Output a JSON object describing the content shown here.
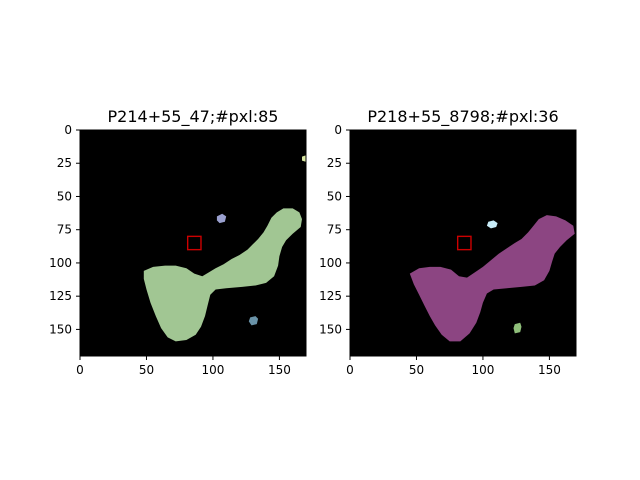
{
  "figure": {
    "background": "#ffffff"
  },
  "chart_data": [
    {
      "type": "image",
      "title": "P214+55_47;#pxl:85",
      "xlim": [
        0,
        170
      ],
      "ylim": [
        170,
        0
      ],
      "xticks": [
        0,
        50,
        100,
        150
      ],
      "yticks": [
        0,
        25,
        50,
        75,
        100,
        125,
        150
      ],
      "background": "#000000",
      "marker_box": {
        "x": [
          81,
          91
        ],
        "y": [
          80,
          90
        ],
        "color": "#cc0000"
      },
      "regions": [
        {
          "name": "main-blob",
          "color": "#a1c693",
          "points": [
            [
              48,
              106
            ],
            [
              55,
              103
            ],
            [
              64,
              102
            ],
            [
              72,
              102
            ],
            [
              80,
              104
            ],
            [
              86,
              108
            ],
            [
              92,
              110
            ],
            [
              97,
              107
            ],
            [
              102,
              104
            ],
            [
              108,
              101
            ],
            [
              114,
              97
            ],
            [
              120,
              94
            ],
            [
              126,
              90
            ],
            [
              130,
              86
            ],
            [
              134,
              82
            ],
            [
              138,
              77
            ],
            [
              141,
              72
            ],
            [
              144,
              66
            ],
            [
              148,
              62
            ],
            [
              153,
              59
            ],
            [
              160,
              59
            ],
            [
              165,
              62
            ],
            [
              167,
              67
            ],
            [
              166,
              73
            ],
            [
              160,
              78
            ],
            [
              155,
              83
            ],
            [
              152,
              88
            ],
            [
              150,
              95
            ],
            [
              149,
              102
            ],
            [
              146,
              110
            ],
            [
              140,
              115
            ],
            [
              132,
              117
            ],
            [
              122,
              118
            ],
            [
              110,
              119
            ],
            [
              102,
              120
            ],
            [
              98,
              124
            ],
            [
              96,
              132
            ],
            [
              94,
              140
            ],
            [
              91,
              148
            ],
            [
              87,
              154
            ],
            [
              80,
              158
            ],
            [
              72,
              159
            ],
            [
              66,
              156
            ],
            [
              61,
              149
            ],
            [
              57,
              140
            ],
            [
              53,
              130
            ],
            [
              50,
              120
            ],
            [
              48,
              112
            ]
          ]
        },
        {
          "name": "purple-speck",
          "color": "#9aa0cf",
          "points": [
            [
              103,
              65
            ],
            [
              107,
              63
            ],
            [
              110,
              65
            ],
            [
              109,
              69
            ],
            [
              105,
              70
            ],
            [
              103,
              68
            ]
          ]
        },
        {
          "name": "teal-speck",
          "color": "#6a93a8",
          "points": [
            [
              128,
              141
            ],
            [
              132,
              140
            ],
            [
              134,
              142
            ],
            [
              133,
              146
            ],
            [
              129,
              147
            ],
            [
              127,
              144
            ]
          ]
        },
        {
          "name": "yellow-speck",
          "color": "#d8e6a0",
          "points": [
            [
              167,
              20
            ],
            [
              170,
              19
            ],
            [
              170,
              24
            ],
            [
              167,
              23
            ]
          ]
        }
      ]
    },
    {
      "type": "image",
      "title": "P218+55_8798;#pxl:36",
      "xlim": [
        0,
        170
      ],
      "ylim": [
        170,
        0
      ],
      "xticks": [
        0,
        50,
        100,
        150
      ],
      "yticks": [
        0,
        25,
        50,
        75,
        100,
        125,
        150
      ],
      "background": "#000000",
      "marker_box": {
        "x": [
          81,
          91
        ],
        "y": [
          80,
          90
        ],
        "color": "#cc0000"
      },
      "regions": [
        {
          "name": "main-blob",
          "color": "#8c4582",
          "points": [
            [
              45,
              108
            ],
            [
              52,
              104
            ],
            [
              60,
              103
            ],
            [
              68,
              103
            ],
            [
              76,
              105
            ],
            [
              82,
              110
            ],
            [
              88,
              111
            ],
            [
              94,
              107
            ],
            [
              100,
              103
            ],
            [
              106,
              98
            ],
            [
              112,
              93
            ],
            [
              118,
              89
            ],
            [
              124,
              85
            ],
            [
              129,
              82
            ],
            [
              134,
              77
            ],
            [
              138,
              72
            ],
            [
              142,
              67
            ],
            [
              148,
              64
            ],
            [
              155,
              65
            ],
            [
              162,
              68
            ],
            [
              168,
              72
            ],
            [
              169,
              78
            ],
            [
              163,
              83
            ],
            [
              158,
              88
            ],
            [
              154,
              93
            ],
            [
              152,
              99
            ],
            [
              150,
              106
            ],
            [
              146,
              113
            ],
            [
              139,
              117
            ],
            [
              129,
              118
            ],
            [
              118,
              119
            ],
            [
              108,
              120
            ],
            [
              103,
              123
            ],
            [
              100,
              130
            ],
            [
              98,
              137
            ],
            [
              95,
              145
            ],
            [
              90,
              153
            ],
            [
              83,
              159
            ],
            [
              75,
              159
            ],
            [
              69,
              154
            ],
            [
              64,
              147
            ],
            [
              60,
              140
            ],
            [
              56,
              132
            ],
            [
              52,
              124
            ],
            [
              48,
              116
            ]
          ]
        },
        {
          "name": "cyan-speck",
          "color": "#c8ecf8",
          "points": [
            [
              104,
              69
            ],
            [
              108,
              68
            ],
            [
              111,
              70
            ],
            [
              110,
              73
            ],
            [
              106,
              74
            ],
            [
              103,
              72
            ]
          ]
        },
        {
          "name": "green-speck",
          "color": "#8fbf7a",
          "points": [
            [
              124,
              146
            ],
            [
              128,
              145
            ],
            [
              129,
              148
            ],
            [
              128,
              152
            ],
            [
              124,
              153
            ],
            [
              123,
              149
            ]
          ]
        }
      ]
    }
  ]
}
